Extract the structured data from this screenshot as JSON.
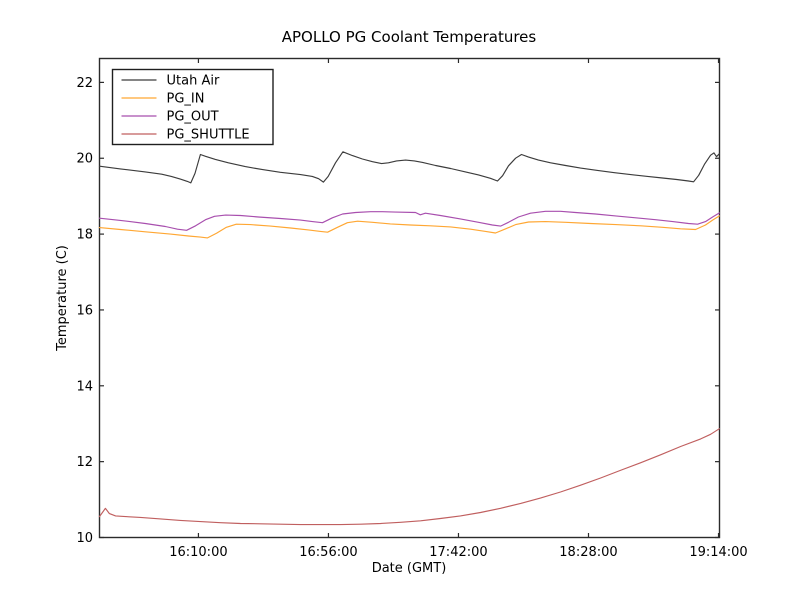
{
  "window": {
    "background": "#ffffff"
  },
  "chart_data": {
    "type": "line",
    "title": "APOLLO PG Coolant Temperatures",
    "xlabel": "Date (GMT)",
    "ylabel": "Temperature (C)",
    "x_axis": {
      "unit": "minutes since 15:35:00 GMT",
      "range": [
        0,
        219.35
      ],
      "ticks": [
        {
          "t": 35,
          "label": "16:10:00"
        },
        {
          "t": 81,
          "label": "16:56:00"
        },
        {
          "t": 127,
          "label": "17:42:00"
        },
        {
          "t": 173,
          "label": "18:28:00"
        },
        {
          "t": 219,
          "label": "19:14:00"
        }
      ]
    },
    "y_axis": {
      "range": [
        10,
        22.63
      ],
      "ticks": [
        10,
        12,
        14,
        16,
        18,
        20,
        22
      ]
    },
    "legend": {
      "position": "upper left",
      "entries": [
        "Utah Air",
        "PG_IN",
        "PG_OUT",
        "PG_SHUTTLE"
      ]
    },
    "grid": false,
    "axis_color": "#2b2b2b",
    "series": [
      {
        "name": "Utah Air",
        "color": "#3c3c3c",
        "points": [
          [
            0,
            19.79
          ],
          [
            7.4,
            19.72
          ],
          [
            16.2,
            19.64
          ],
          [
            22,
            19.58
          ],
          [
            25.4,
            19.52
          ],
          [
            28.6,
            19.45
          ],
          [
            31.1,
            19.39
          ],
          [
            32.3,
            19.35
          ],
          [
            33.8,
            19.6
          ],
          [
            35.7,
            20.1
          ],
          [
            37.5,
            20.05
          ],
          [
            41,
            19.97
          ],
          [
            45.6,
            19.88
          ],
          [
            51.6,
            19.78
          ],
          [
            57.7,
            19.7
          ],
          [
            64,
            19.63
          ],
          [
            71.1,
            19.57
          ],
          [
            75.3,
            19.52
          ],
          [
            77.5,
            19.46
          ],
          [
            79.2,
            19.37
          ],
          [
            80.9,
            19.52
          ],
          [
            83.5,
            19.88
          ],
          [
            86.1,
            20.17
          ],
          [
            89.5,
            20.07
          ],
          [
            93,
            19.98
          ],
          [
            96.6,
            19.91
          ],
          [
            99.8,
            19.86
          ],
          [
            102.2,
            19.88
          ],
          [
            105.1,
            19.93
          ],
          [
            108.3,
            19.95
          ],
          [
            111.4,
            19.93
          ],
          [
            114.3,
            19.89
          ],
          [
            118.9,
            19.81
          ],
          [
            124.2,
            19.73
          ],
          [
            129.5,
            19.64
          ],
          [
            134.1,
            19.56
          ],
          [
            138.3,
            19.47
          ],
          [
            140.8,
            19.4
          ],
          [
            142.6,
            19.54
          ],
          [
            144.7,
            19.8
          ],
          [
            147.2,
            20.0
          ],
          [
            149.3,
            20.1
          ],
          [
            151.8,
            20.03
          ],
          [
            155.3,
            19.95
          ],
          [
            159.6,
            19.88
          ],
          [
            164.9,
            19.81
          ],
          [
            170.2,
            19.74
          ],
          [
            176.2,
            19.68
          ],
          [
            182.2,
            19.62
          ],
          [
            187.9,
            19.57
          ],
          [
            193.9,
            19.52
          ],
          [
            199.2,
            19.48
          ],
          [
            204.2,
            19.44
          ],
          [
            208.4,
            19.4
          ],
          [
            210.2,
            19.38
          ],
          [
            212,
            19.55
          ],
          [
            214.1,
            19.85
          ],
          [
            216.2,
            20.08
          ],
          [
            217.4,
            20.14
          ],
          [
            218.3,
            20.04
          ],
          [
            219.3,
            20.12
          ]
        ]
      },
      {
        "name": "PG_IN",
        "color": "#ffa733",
        "points": [
          [
            0,
            18.17
          ],
          [
            7.4,
            18.12
          ],
          [
            16.2,
            18.06
          ],
          [
            25.1,
            18.0
          ],
          [
            31.5,
            17.95
          ],
          [
            35.7,
            17.92
          ],
          [
            38.2,
            17.9
          ],
          [
            41.4,
            18.02
          ],
          [
            44.9,
            18.18
          ],
          [
            48.4,
            18.26
          ],
          [
            53.4,
            18.25
          ],
          [
            60.5,
            18.21
          ],
          [
            67.6,
            18.16
          ],
          [
            73.9,
            18.11
          ],
          [
            78.2,
            18.07
          ],
          [
            80.7,
            18.05
          ],
          [
            84.2,
            18.18
          ],
          [
            87.7,
            18.3
          ],
          [
            91.3,
            18.34
          ],
          [
            96.6,
            18.31
          ],
          [
            102.9,
            18.27
          ],
          [
            110,
            18.24
          ],
          [
            117.1,
            18.22
          ],
          [
            124.2,
            18.19
          ],
          [
            131.3,
            18.13
          ],
          [
            136.6,
            18.07
          ],
          [
            140.1,
            18.03
          ],
          [
            143.7,
            18.14
          ],
          [
            147.2,
            18.25
          ],
          [
            151.8,
            18.32
          ],
          [
            157.8,
            18.33
          ],
          [
            164.9,
            18.31
          ],
          [
            173.7,
            18.28
          ],
          [
            182.6,
            18.25
          ],
          [
            191.5,
            18.22
          ],
          [
            199.2,
            18.18
          ],
          [
            205.6,
            18.14
          ],
          [
            210.9,
            18.12
          ],
          [
            214.4,
            18.24
          ],
          [
            216.9,
            18.37
          ],
          [
            219.3,
            18.48
          ]
        ]
      },
      {
        "name": "PG_OUT",
        "color": "#a84fae",
        "points": [
          [
            0,
            18.42
          ],
          [
            7.4,
            18.36
          ],
          [
            16.2,
            18.28
          ],
          [
            23.3,
            18.2
          ],
          [
            27.6,
            18.13
          ],
          [
            30.8,
            18.1
          ],
          [
            34,
            18.22
          ],
          [
            37.5,
            18.38
          ],
          [
            40.7,
            18.47
          ],
          [
            44.6,
            18.5
          ],
          [
            49.9,
            18.49
          ],
          [
            56.2,
            18.45
          ],
          [
            64,
            18.41
          ],
          [
            71.1,
            18.37
          ],
          [
            75.3,
            18.33
          ],
          [
            78.9,
            18.3
          ],
          [
            82.4,
            18.43
          ],
          [
            86,
            18.53
          ],
          [
            90.6,
            18.57
          ],
          [
            95.9,
            18.59
          ],
          [
            100.1,
            18.59
          ],
          [
            104.7,
            18.58
          ],
          [
            111.8,
            18.57
          ],
          [
            113.5,
            18.51
          ],
          [
            115.3,
            18.55
          ],
          [
            120.6,
            18.49
          ],
          [
            127.7,
            18.4
          ],
          [
            134.1,
            18.31
          ],
          [
            139,
            18.24
          ],
          [
            141.9,
            18.21
          ],
          [
            144.7,
            18.31
          ],
          [
            148.2,
            18.45
          ],
          [
            152.5,
            18.55
          ],
          [
            157.8,
            18.6
          ],
          [
            163.1,
            18.6
          ],
          [
            168.4,
            18.57
          ],
          [
            175.5,
            18.53
          ],
          [
            182.6,
            18.48
          ],
          [
            189.7,
            18.43
          ],
          [
            196.7,
            18.38
          ],
          [
            202.8,
            18.33
          ],
          [
            208.4,
            18.28
          ],
          [
            211.6,
            18.26
          ],
          [
            214.4,
            18.33
          ],
          [
            216.9,
            18.45
          ],
          [
            219.3,
            18.56
          ]
        ]
      },
      {
        "name": "PG_SHUTTLE",
        "color": "#c05f5f",
        "points": [
          [
            0,
            10.55
          ],
          [
            1.4,
            10.7
          ],
          [
            2.1,
            10.77
          ],
          [
            3.5,
            10.63
          ],
          [
            5.7,
            10.57
          ],
          [
            9.2,
            10.55
          ],
          [
            14.5,
            10.53
          ],
          [
            21.6,
            10.49
          ],
          [
            28.6,
            10.45
          ],
          [
            35.7,
            10.42
          ],
          [
            42.8,
            10.39
          ],
          [
            49.9,
            10.37
          ],
          [
            56.9,
            10.36
          ],
          [
            64,
            10.35
          ],
          [
            71.1,
            10.34
          ],
          [
            78.2,
            10.34
          ],
          [
            85.3,
            10.34
          ],
          [
            92.4,
            10.35
          ],
          [
            99.5,
            10.37
          ],
          [
            106.5,
            10.4
          ],
          [
            113.6,
            10.44
          ],
          [
            120.6,
            10.5
          ],
          [
            127.7,
            10.57
          ],
          [
            134.8,
            10.66
          ],
          [
            141.9,
            10.77
          ],
          [
            149,
            10.9
          ],
          [
            156,
            11.04
          ],
          [
            163.1,
            11.2
          ],
          [
            170.2,
            11.38
          ],
          [
            177.3,
            11.57
          ],
          [
            184.3,
            11.77
          ],
          [
            191.4,
            11.97
          ],
          [
            198.5,
            12.18
          ],
          [
            205.6,
            12.4
          ],
          [
            212.7,
            12.6
          ],
          [
            216.2,
            12.72
          ],
          [
            219.3,
            12.87
          ]
        ]
      }
    ]
  }
}
